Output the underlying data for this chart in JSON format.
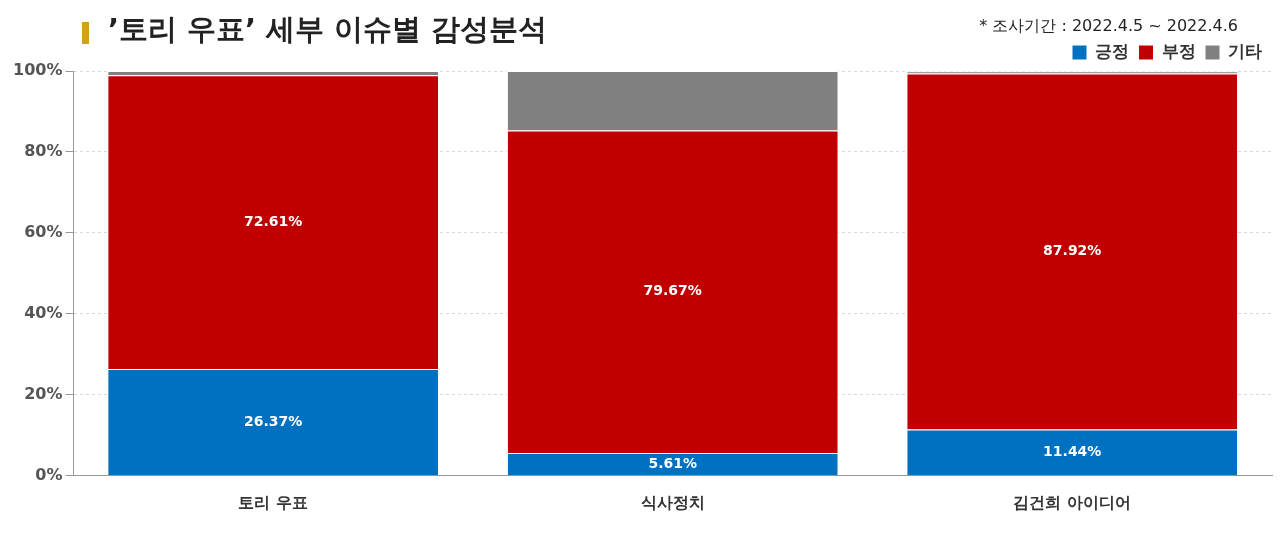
{
  "chart_data": {
    "type": "bar",
    "title": "’토리 우표’ 세부 이슈별 감성분석",
    "annotations": [
      "* 조사기간 : 2022.4.5 ~ 2022.4.6"
    ],
    "categories": [
      "토리 우표",
      "식사정치",
      "김건희 아이디어"
    ],
    "stacked": true,
    "series": [
      {
        "name": "긍정",
        "color": "#0070c0",
        "values": [
          26.37,
          5.61,
          11.44
        ],
        "value_labels": [
          "26.37%",
          "5.61%",
          "11.44%"
        ]
      },
      {
        "name": "부정",
        "color": "#c00000",
        "values": [
          72.61,
          79.67,
          87.92
        ],
        "value_labels": [
          "72.61%",
          "79.67%",
          "87.92%"
        ]
      },
      {
        "name": "기타",
        "color": "#808080",
        "values": [
          1,
          14.7,
          0.6
        ]
      }
    ],
    "ylim": [
      0,
      100
    ],
    "yticks": [
      {
        "value": 0,
        "label": "0%"
      },
      {
        "value": 20,
        "label": "20%"
      },
      {
        "value": 40,
        "label": "40%"
      },
      {
        "value": 60,
        "label": "60%"
      },
      {
        "value": 80,
        "label": "80%"
      },
      {
        "value": 100,
        "label": "100%"
      }
    ],
    "grid": "y",
    "legend": "top right"
  }
}
